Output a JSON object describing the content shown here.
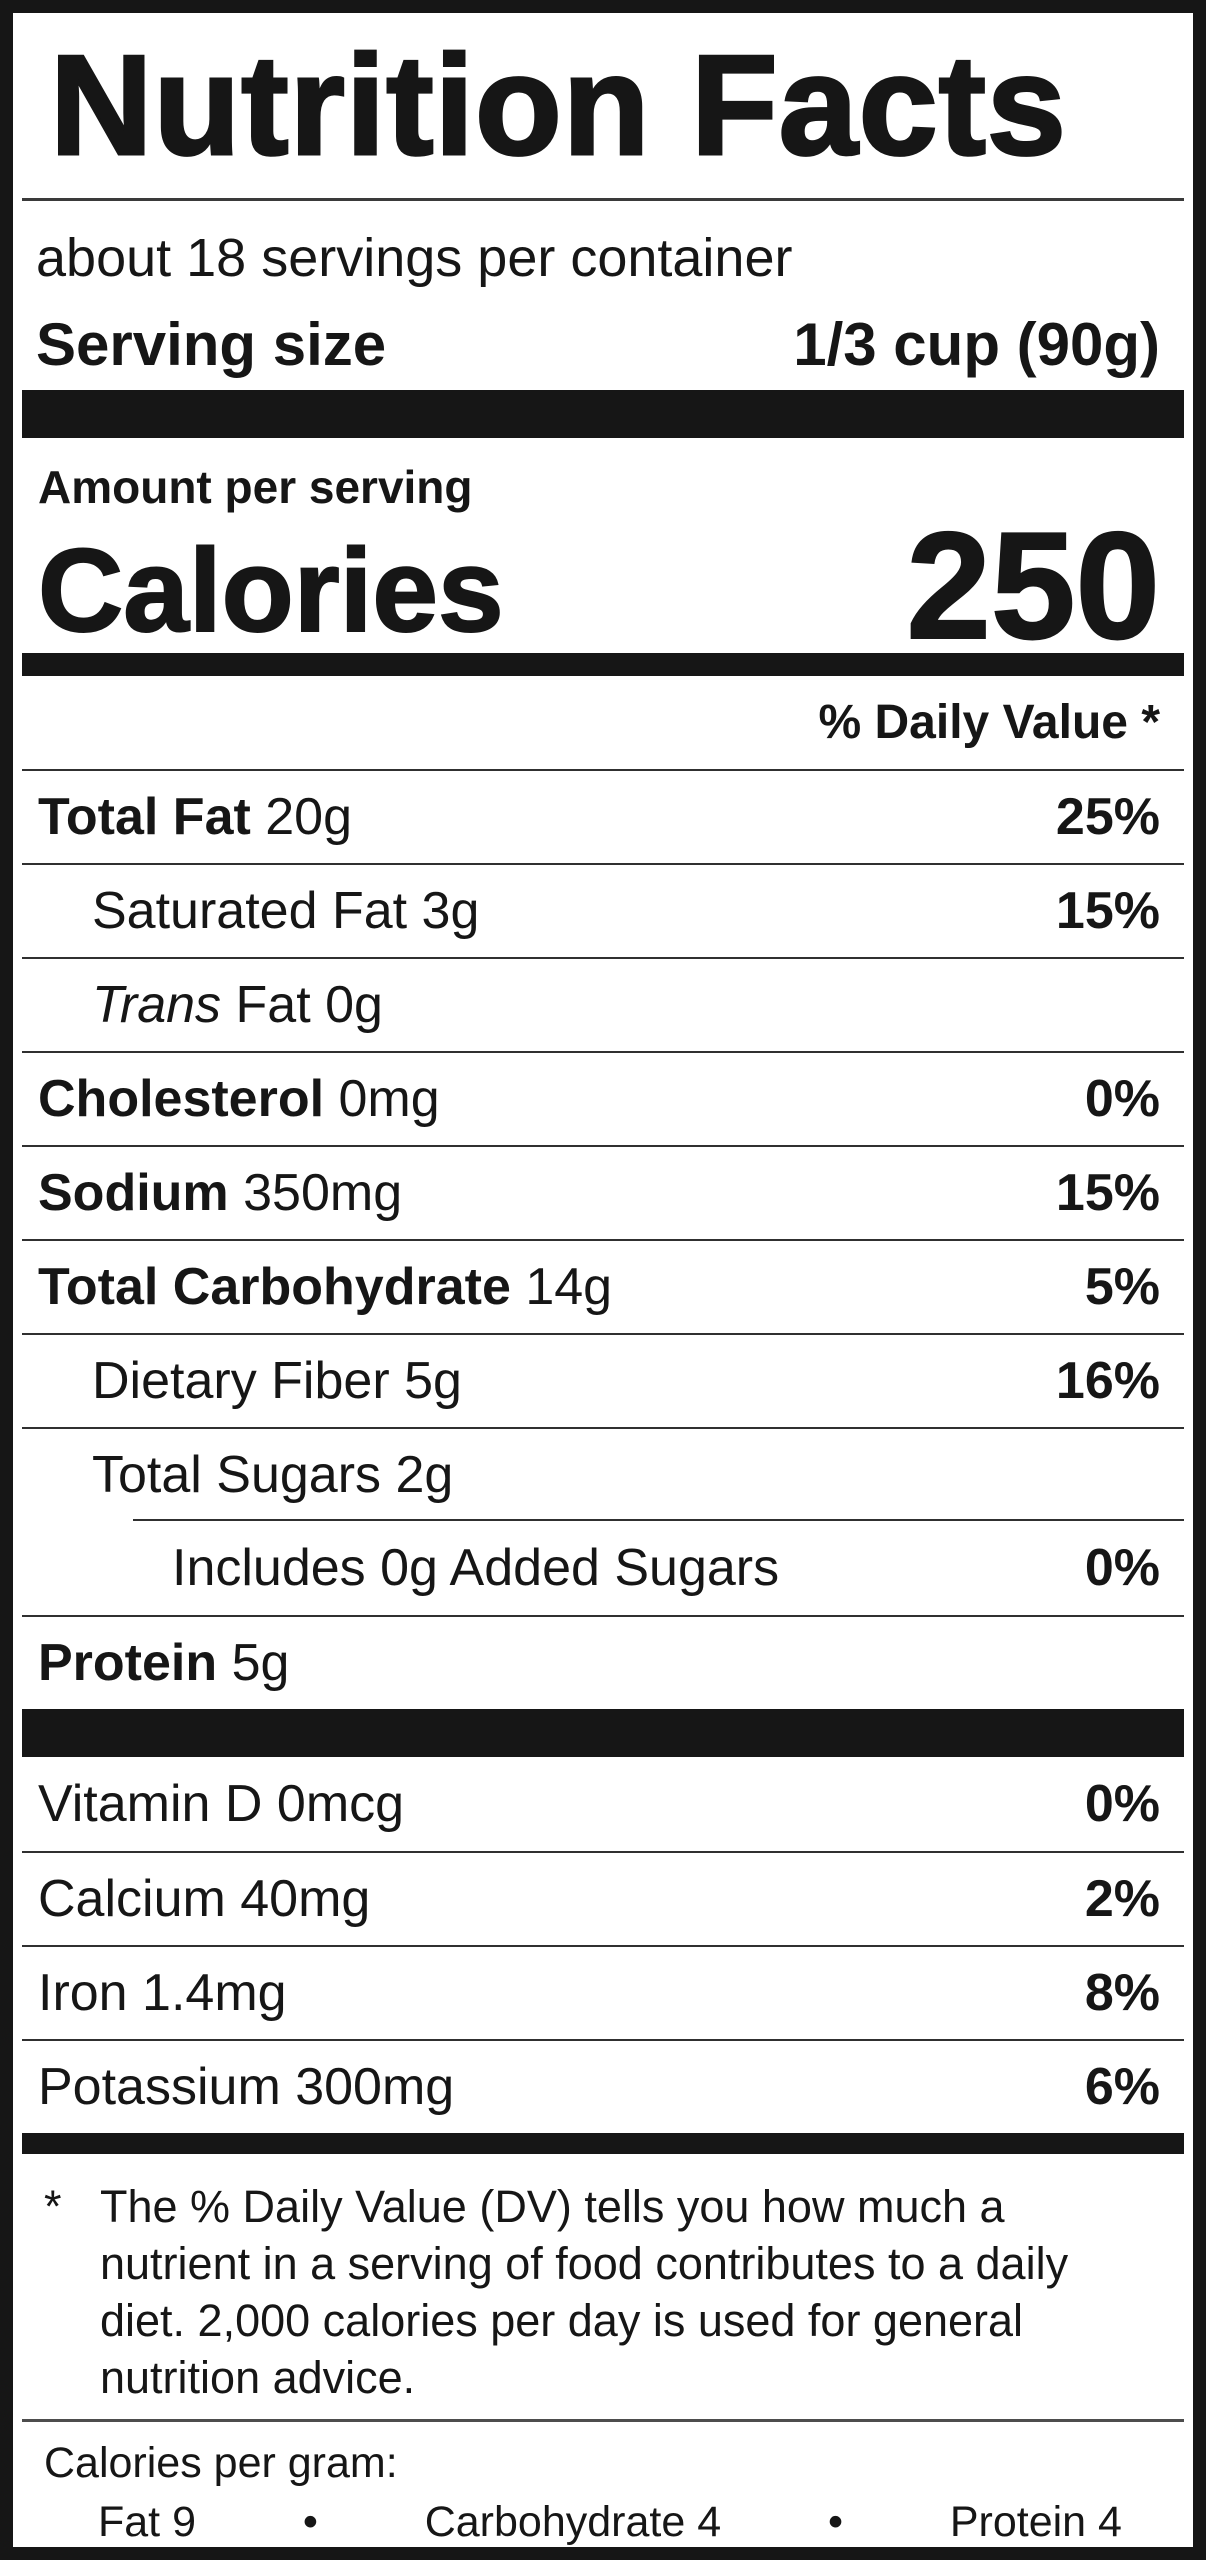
{
  "colors": {
    "ink": "#161616",
    "rule": "#303030",
    "background": "#ffffff"
  },
  "label": {
    "title": "Nutrition Facts",
    "servings_per_container": "about 18 servings per container",
    "serving_size": {
      "label": "Serving size",
      "value": "1/3 cup (90g)"
    },
    "amount_per_serving": "Amount per serving",
    "calories": {
      "label": "Calories",
      "value": "250"
    },
    "daily_value_header": "% Daily Value *",
    "nutrients": [
      {
        "parts": [
          {
            "text": "Total Fat",
            "style": "bold"
          },
          {
            "text": " 20g",
            "style": "regular"
          }
        ],
        "dv": "25%",
        "indent": 0
      },
      {
        "parts": [
          {
            "text": "Saturated Fat 3g",
            "style": "regular"
          }
        ],
        "dv": "15%",
        "indent": 1
      },
      {
        "parts": [
          {
            "text": "Trans",
            "style": "italic"
          },
          {
            "text": " Fat 0g",
            "style": "regular"
          }
        ],
        "dv": "",
        "indent": 1
      },
      {
        "parts": [
          {
            "text": "Cholesterol",
            "style": "bold"
          },
          {
            "text": " 0mg",
            "style": "regular"
          }
        ],
        "dv": "0%",
        "indent": 0
      },
      {
        "parts": [
          {
            "text": "Sodium",
            "style": "bold"
          },
          {
            "text": " 350mg",
            "style": "regular"
          }
        ],
        "dv": "15%",
        "indent": 0
      },
      {
        "parts": [
          {
            "text": "Total Carbohydrate",
            "style": "bold"
          },
          {
            "text": " 14g",
            "style": "regular"
          }
        ],
        "dv": "5%",
        "indent": 0
      },
      {
        "parts": [
          {
            "text": "Dietary Fiber 5g",
            "style": "regular"
          }
        ],
        "dv": "16%",
        "indent": 1
      },
      {
        "parts": [
          {
            "text": "Total Sugars 2g",
            "style": "regular"
          }
        ],
        "dv": "",
        "indent": 1
      },
      {
        "parts": [
          {
            "text": "Includes 0g Added Sugars",
            "style": "regular"
          }
        ],
        "dv": "0%",
        "indent": 2,
        "partial_rule": true
      },
      {
        "parts": [
          {
            "text": "Protein",
            "style": "bold"
          },
          {
            "text": " 5g",
            "style": "regular"
          }
        ],
        "dv": "",
        "indent": 0
      }
    ],
    "vitamins": [
      {
        "parts": [
          {
            "text": "Vitamin D 0mcg",
            "style": "regular"
          }
        ],
        "dv": "0%",
        "indent": 0
      },
      {
        "parts": [
          {
            "text": "Calcium 40mg",
            "style": "regular"
          }
        ],
        "dv": "2%",
        "indent": 0
      },
      {
        "parts": [
          {
            "text": "Iron 1.4mg",
            "style": "regular"
          }
        ],
        "dv": "8%",
        "indent": 0
      },
      {
        "parts": [
          {
            "text": "Potassium 300mg",
            "style": "regular"
          }
        ],
        "dv": "6%",
        "indent": 0
      }
    ],
    "footnote": {
      "marker": "*",
      "text": "The % Daily Value (DV) tells you how much a nutrient in a serving of food contributes to a daily diet. 2,000 calories per day is used for general nutrition advice."
    },
    "calories_per_gram": {
      "label": "Calories per gram:",
      "separator": "•",
      "items": [
        "Fat 9",
        "Carbohydrate 4",
        "Protein 4"
      ]
    }
  }
}
